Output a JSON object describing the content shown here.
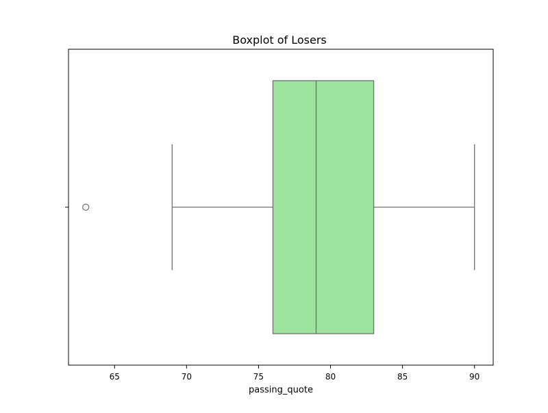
{
  "chart_data": {
    "type": "boxplot",
    "orientation": "horizontal",
    "title": "Boxplot of Losers",
    "xlabel": "passing_quote",
    "ylabel": "",
    "xlim": [
      61.8,
      91.3
    ],
    "x_ticks": [
      65,
      70,
      75,
      80,
      85,
      90
    ],
    "grid": false,
    "box": {
      "whisker_low": 69,
      "q1": 76,
      "median": 79,
      "q3": 83,
      "whisker_high": 90,
      "outliers": [
        63
      ]
    },
    "colors": {
      "box_fill": "#9de39d",
      "line": "#6f6f6f",
      "axes": "#000000"
    }
  }
}
